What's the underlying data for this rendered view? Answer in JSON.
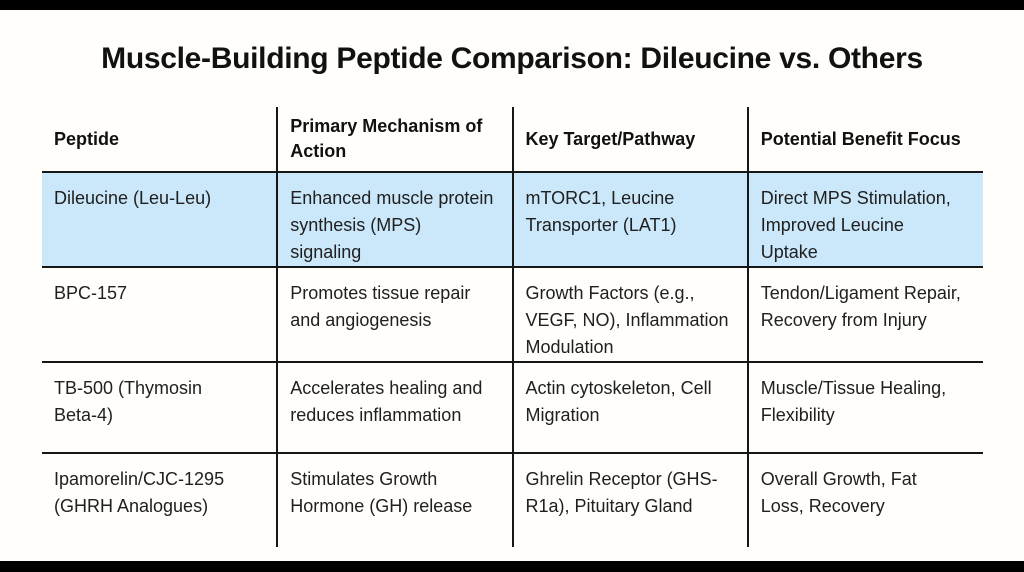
{
  "page": {
    "background_color": "#fffefa",
    "letterbox_color": "#000000",
    "text_color": "#202020",
    "border_color": "#161616"
  },
  "title": "Muscle-Building Peptide Comparison: Dileucine vs. Others",
  "table": {
    "highlight_color": "#cbe7fa",
    "columns": [
      "Peptide",
      "Primary Mechanism of\nAction",
      "Key Target/Pathway",
      "Potential Benefit Focus"
    ],
    "rows": [
      {
        "highlighted": true,
        "cells": [
          "Dileucine (Leu-Leu)",
          "Enhanced muscle protein\nsynthesis (MPS)\nsignaling",
          "mTORC1, Leucine\nTransporter (LAT1)",
          "Direct MPS Stimulation,\nImproved Leucine\nUptake"
        ]
      },
      {
        "highlighted": false,
        "cells": [
          "BPC-157",
          "Promotes tissue repair\nand angiogenesis",
          "Growth Factors (e.g.,\nVEGF, NO), Inflammation\nModulation",
          "Tendon/Ligament Repair,\nRecovery from Injury"
        ]
      },
      {
        "highlighted": false,
        "cells": [
          "TB-500 (Thymosin\nBeta-4)",
          "Accelerates healing and\nreduces inflammation",
          "Actin cytoskeleton, Cell\nMigration",
          "Muscle/Tissue Healing,\nFlexibility"
        ]
      },
      {
        "highlighted": false,
        "cells": [
          "Ipamorelin/CJC-1295\n(GHRH Analogues)",
          "Stimulates Growth\nHormone (GH) release",
          "Ghrelin Receptor (GHS-\nR1a), Pituitary Gland",
          "Overall Growth, Fat\nLoss, Recovery"
        ]
      }
    ]
  }
}
